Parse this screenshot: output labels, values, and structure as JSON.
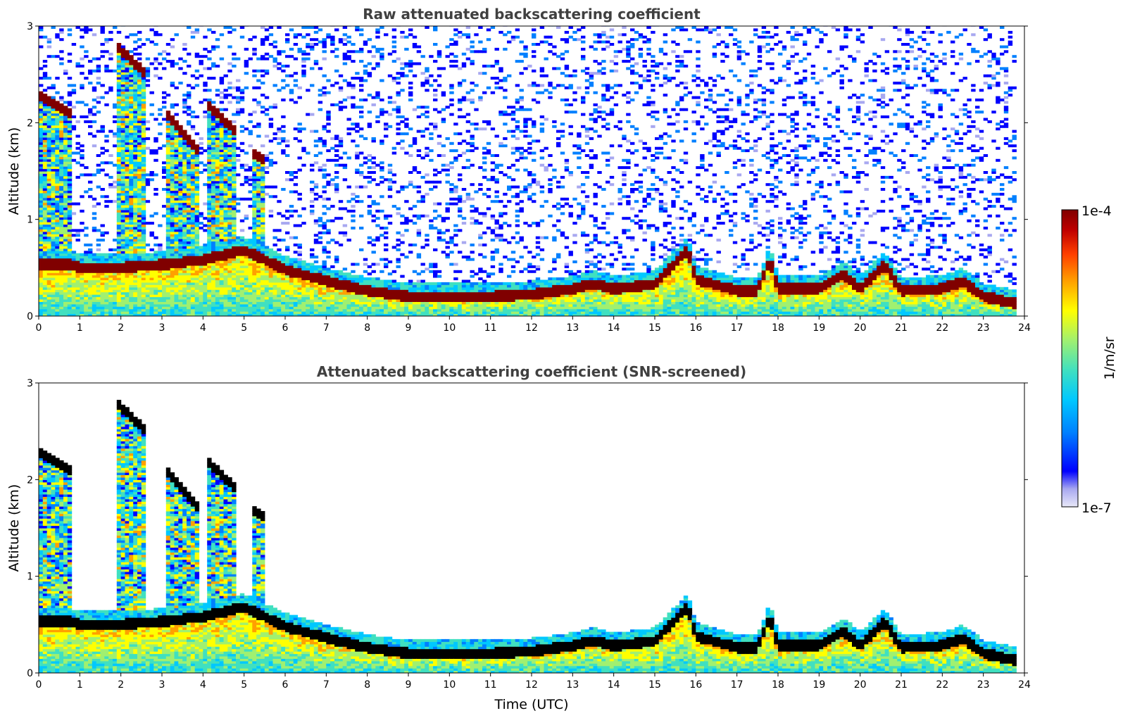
{
  "chart_data": [
    {
      "type": "heatmap",
      "title": "Raw attenuated backscattering coefficient",
      "xlabel": "",
      "ylabel": "Altitude (km)",
      "xlim": [
        0,
        24
      ],
      "ylim": [
        0,
        3
      ],
      "x_ticks": [
        "0",
        "1",
        "2",
        "3",
        "4",
        "5",
        "6",
        "7",
        "8",
        "9",
        "10",
        "11",
        "12",
        "13",
        "14",
        "15",
        "16",
        "17",
        "18",
        "19",
        "20",
        "21",
        "22",
        "23",
        "24"
      ],
      "y_ticks": [
        "0",
        "1",
        "2",
        "3"
      ],
      "grid": false,
      "colormap": "jet",
      "color_scale": "log",
      "clim": [
        "1e-7",
        "1e-4"
      ],
      "colorbar_label": "1/m/sr",
      "boundary_layer_top_km": {
        "time_utc": [
          0,
          0.8,
          1,
          2,
          3,
          4,
          5,
          5.5,
          6,
          7,
          8,
          9,
          10,
          11,
          12,
          13,
          13.5,
          14,
          15,
          15.8,
          16,
          17,
          17.5,
          17.8,
          18,
          19,
          19.6,
          20,
          20.6,
          21,
          22,
          22.5,
          23,
          23.8
        ],
        "altitude_km": [
          0.55,
          0.55,
          0.52,
          0.52,
          0.55,
          0.6,
          0.7,
          0.6,
          0.5,
          0.38,
          0.28,
          0.22,
          0.22,
          0.22,
          0.24,
          0.3,
          0.35,
          0.3,
          0.35,
          0.7,
          0.4,
          0.28,
          0.28,
          0.6,
          0.3,
          0.3,
          0.45,
          0.3,
          0.55,
          0.28,
          0.3,
          0.38,
          0.22,
          0.15
        ]
      },
      "cloud_layers": [
        {
          "time_utc": [
            0,
            0.75
          ],
          "altitude_km": [
            2.3,
            2.1
          ]
        },
        {
          "time_utc": [
            1.9,
            2.6
          ],
          "altitude_km": [
            2.8,
            2.5
          ]
        },
        {
          "time_utc": [
            3.1,
            3.9
          ],
          "altitude_km": [
            2.1,
            1.7
          ]
        },
        {
          "time_utc": [
            4.1,
            4.8
          ],
          "altitude_km": [
            2.2,
            1.9
          ]
        },
        {
          "time_utc": [
            5.2,
            5.5
          ],
          "altitude_km": [
            1.7,
            1.6
          ]
        }
      ]
    },
    {
      "type": "heatmap",
      "title": "Attenuated backscattering coefficient (SNR-screened)",
      "xlabel": "Time (UTC)",
      "ylabel": "Altitude (km)",
      "xlim": [
        0,
        24
      ],
      "ylim": [
        0,
        3
      ],
      "x_ticks": [
        "0",
        "1",
        "2",
        "3",
        "4",
        "5",
        "6",
        "7",
        "8",
        "9",
        "10",
        "11",
        "12",
        "13",
        "14",
        "15",
        "16",
        "17",
        "18",
        "19",
        "20",
        "21",
        "22",
        "23",
        "24"
      ],
      "y_ticks": [
        "0",
        "1",
        "2",
        "3"
      ],
      "grid": false,
      "colormap": "jet",
      "color_scale": "log",
      "clim": [
        "1e-7",
        "1e-4"
      ],
      "colorbar_label": "1/m/sr",
      "screened": true
    }
  ],
  "colorbar": {
    "max_label": "1e-4",
    "min_label": "1e-7",
    "label": "1/m/sr",
    "colors": [
      "#e8e8f8",
      "#a8a8f0",
      "#0000ff",
      "#0080ff",
      "#00c8ff",
      "#40e0c0",
      "#a0f070",
      "#ffff00",
      "#ffa000",
      "#ff4000",
      "#c00000",
      "#800000"
    ]
  }
}
